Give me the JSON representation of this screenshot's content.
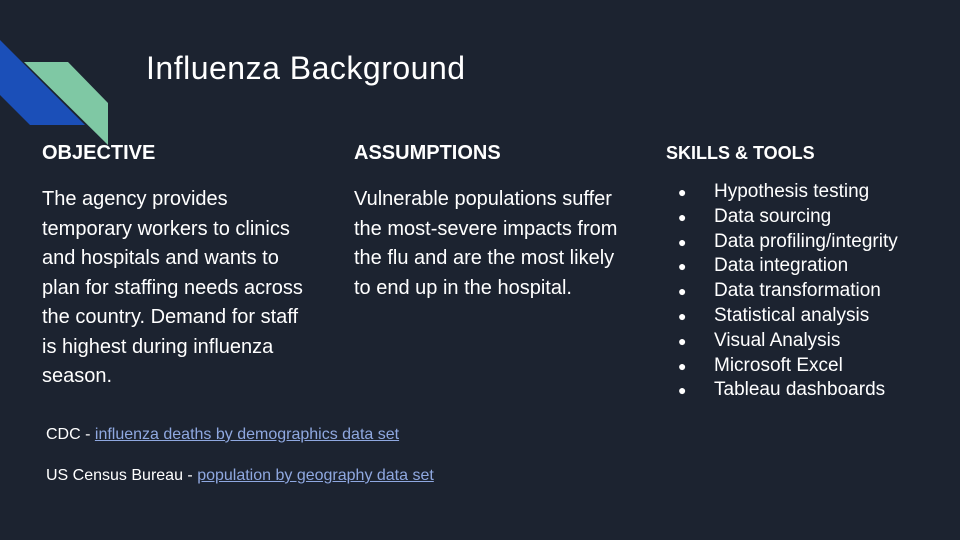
{
  "title": "Influenza Background",
  "objective": {
    "heading": "OBJECTIVE",
    "text": "The agency provides temporary workers to clinics and hospitals and wants to plan for staffing needs across the country. Demand for staff is highest during influenza season."
  },
  "assumptions": {
    "heading": "ASSUMPTIONS",
    "text": "Vulnerable populations suffer the most-severe impacts from the flu and are the most likely to end up in the hospital."
  },
  "skills": {
    "heading": "SKILLS & TOOLS",
    "items": [
      "Hypothesis testing",
      "Data sourcing",
      "Data profiling/integrity",
      "Data integration",
      "Data transformation",
      "Statistical analysis",
      "Visual Analysis",
      "Microsoft Excel",
      "Tableau dashboards"
    ]
  },
  "sources": [
    {
      "org": "CDC - ",
      "link": "influenza deaths by demographics data set"
    },
    {
      "org": "US Census Bureau - ",
      "link": "population by geography data set"
    }
  ],
  "colors": {
    "background": "#1c2330",
    "accent_blue": "#1b4fb8",
    "accent_green": "#7fc8a4",
    "link": "#8fa8e0"
  }
}
